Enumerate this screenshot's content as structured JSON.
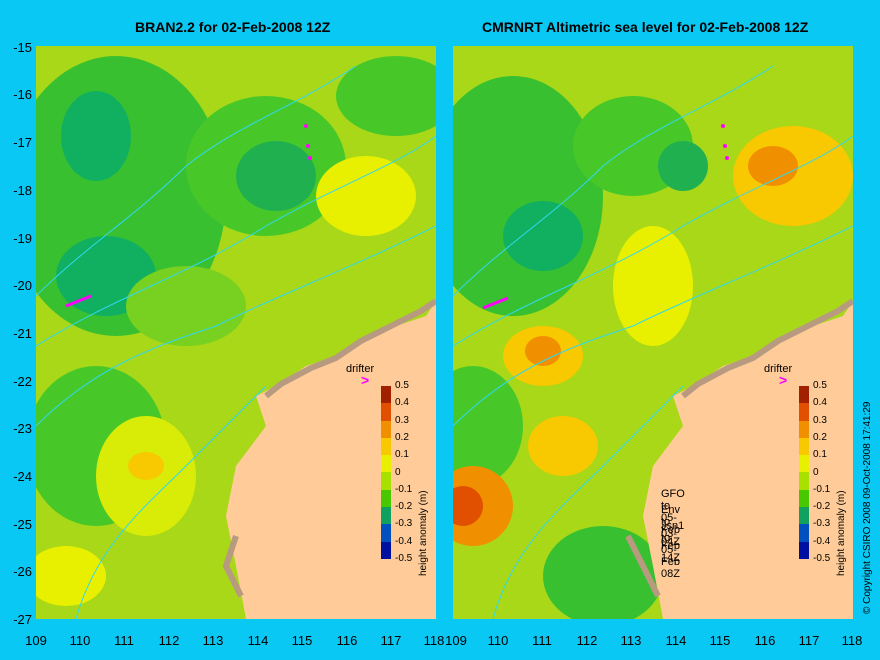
{
  "titles": {
    "left": "BRAN2.2 for 02-Feb-2008 12Z",
    "right": "CMRNRT Altimetric sea level  for 02-Feb-2008 12Z"
  },
  "axes": {
    "y_ticks": [
      "-15",
      "-16",
      "-17",
      "-18",
      "-19",
      "-20",
      "-21",
      "-22",
      "-23",
      "-24",
      "-25",
      "-26",
      "-27"
    ],
    "x_ticks": [
      "109",
      "110",
      "111",
      "112",
      "113",
      "114",
      "115",
      "116",
      "117",
      "118"
    ]
  },
  "colorbar": {
    "label": "height anomaly (m)",
    "ticks": [
      "0.5",
      "0.4",
      "0.3",
      "0.2",
      "0.1",
      "0",
      "-0.1",
      "-0.2",
      "-0.3",
      "-0.4",
      "-0.5"
    ],
    "colors": [
      "#a02000",
      "#e05000",
      "#f09000",
      "#f8c800",
      "#e8f000",
      "#a8e000",
      "#48c800",
      "#10a060",
      "#0050c0",
      "#0010a0"
    ]
  },
  "drifter": {
    "label": "drifter",
    "arrow": ">"
  },
  "passes": [
    "GFO to 05-Feb 04Z",
    "Env to 03-Feb 14Z",
    "Jsn1 to 05-Feb 08Z"
  ],
  "credits": "© Copyright CSIRO 2008   09-Oct-2008 17:41:29",
  "colors": {
    "background": "#0ac8f4",
    "land": "#ffcc99",
    "coast_shadow": "#b89a80",
    "bathymetry_contour": "#30d8f0",
    "track_marker": "#ff00ff"
  }
}
